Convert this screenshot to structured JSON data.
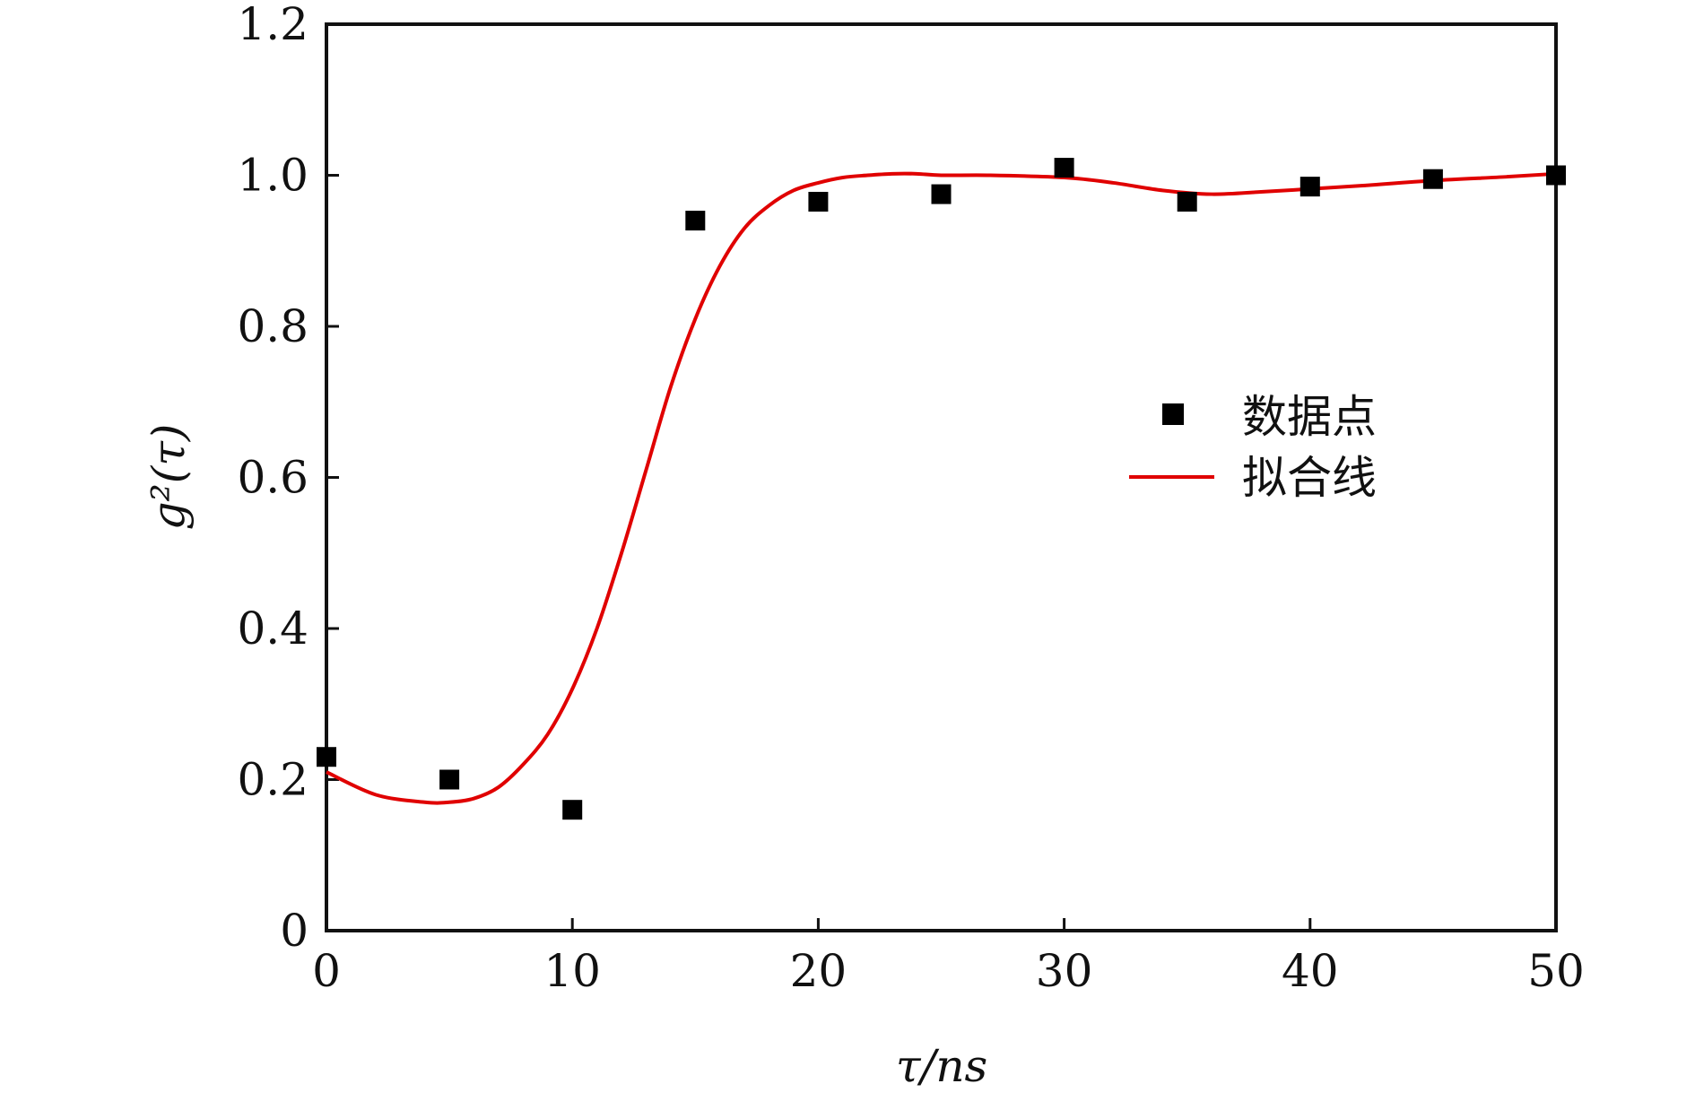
{
  "chart_data": {
    "type": "scatter",
    "title": "",
    "xlabel": "τ/ns",
    "ylabel": "g²(τ)",
    "xlim": [
      0,
      50
    ],
    "ylim": [
      0,
      1.2
    ],
    "xticks": [
      0,
      10,
      20,
      30,
      40,
      50
    ],
    "xtick_labels": [
      "0",
      "10",
      "20",
      "30",
      "40",
      "50"
    ],
    "yticks": [
      0,
      0.2,
      0.4,
      0.6,
      0.8,
      1.0,
      1.2
    ],
    "ytick_labels": [
      "0",
      "0.2",
      "0.4",
      "0.6",
      "0.8",
      "1.0",
      "1.2"
    ],
    "grid": false,
    "legend_position": "right",
    "series": [
      {
        "name": "数据点",
        "kind": "scatter",
        "marker": "square",
        "color": "#000000",
        "x": [
          0,
          5,
          10,
          15,
          20,
          25,
          30,
          35,
          40,
          45,
          50
        ],
        "y": [
          0.23,
          0.2,
          0.16,
          0.94,
          0.965,
          0.975,
          1.01,
          0.965,
          0.985,
          0.995,
          1.0
        ]
      },
      {
        "name": "拟合线",
        "kind": "line",
        "color": "#e00000",
        "x": [
          0,
          2,
          4,
          5,
          6,
          7,
          8,
          9,
          10,
          11,
          12,
          13,
          14,
          15,
          16,
          17,
          18,
          19,
          20,
          21,
          22,
          23,
          24,
          25,
          27,
          30,
          32,
          34,
          36,
          38,
          40,
          42,
          45,
          48,
          50
        ],
        "y": [
          0.21,
          0.18,
          0.17,
          0.17,
          0.175,
          0.19,
          0.22,
          0.26,
          0.32,
          0.4,
          0.5,
          0.61,
          0.72,
          0.81,
          0.88,
          0.93,
          0.96,
          0.98,
          0.99,
          0.997,
          1.0,
          1.002,
          1.002,
          1.0,
          1.0,
          0.997,
          0.99,
          0.98,
          0.975,
          0.978,
          0.982,
          0.986,
          0.993,
          0.998,
          1.002
        ]
      }
    ]
  }
}
